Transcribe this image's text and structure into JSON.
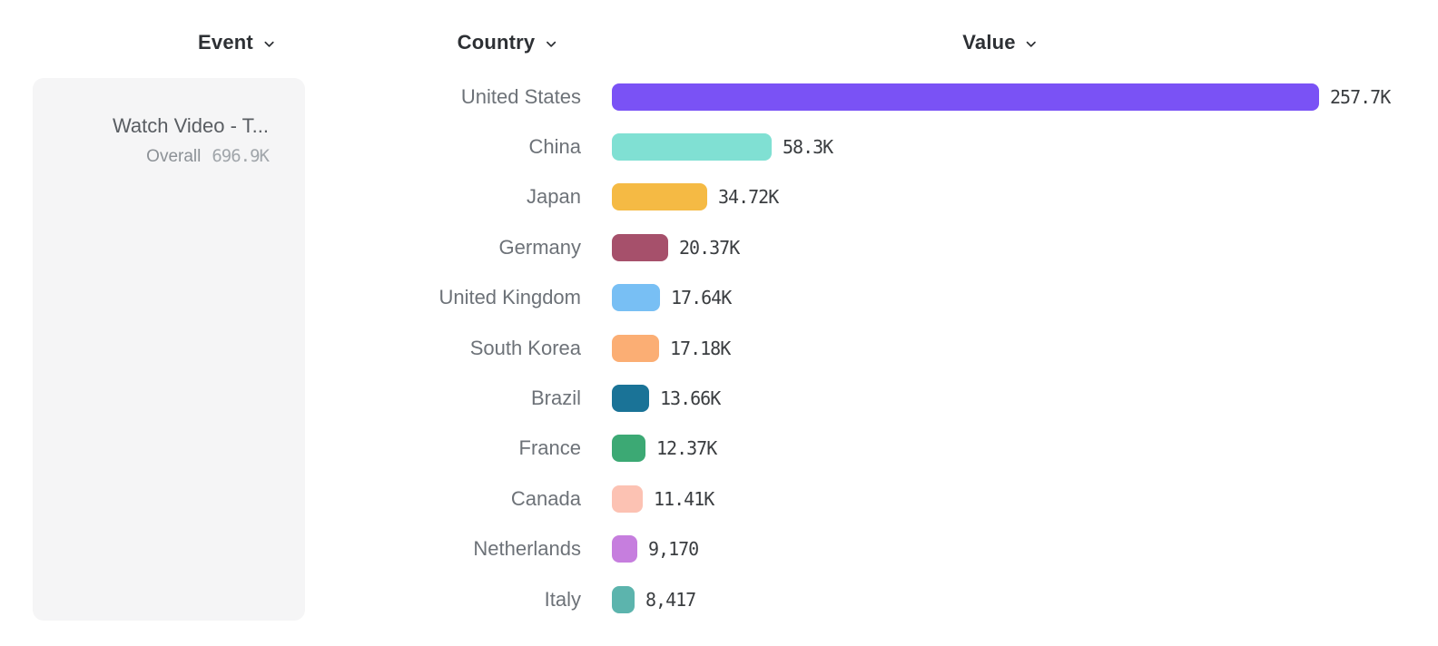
{
  "headers": {
    "event": {
      "label": "Event"
    },
    "country": {
      "label": "Country"
    },
    "value": {
      "label": "Value"
    }
  },
  "event_card": {
    "title": "Watch Video - T...",
    "metric_label": "Overall",
    "metric_value": "696.9K",
    "background_color": "#f5f5f6"
  },
  "chart_data": {
    "type": "bar",
    "orientation": "horizontal",
    "title": "",
    "xlabel": "",
    "ylabel": "",
    "grid": false,
    "legend": false,
    "xlim": [
      0,
      257700
    ],
    "value_label_position": "right-of-bar",
    "categories": [
      "United States",
      "China",
      "Japan",
      "Germany",
      "United Kingdom",
      "South Korea",
      "Brazil",
      "France",
      "Canada",
      "Netherlands",
      "Italy"
    ],
    "values": [
      257700,
      58300,
      34720,
      20370,
      17640,
      17180,
      13660,
      12370,
      11410,
      9170,
      8417
    ],
    "value_labels": [
      "257.7K",
      "58.3K",
      "34.72K",
      "20.37K",
      "17.64K",
      "17.18K",
      "13.66K",
      "12.37K",
      "11.41K",
      "9,170",
      "8,417"
    ],
    "bar_colors": [
      "#7a52f5",
      "#80e0d3",
      "#f5ba44",
      "#a6506b",
      "#78bff4",
      "#fbae74",
      "#1a7397",
      "#3ca974",
      "#fcc2b3",
      "#c67ede",
      "#5cb4ad"
    ]
  }
}
